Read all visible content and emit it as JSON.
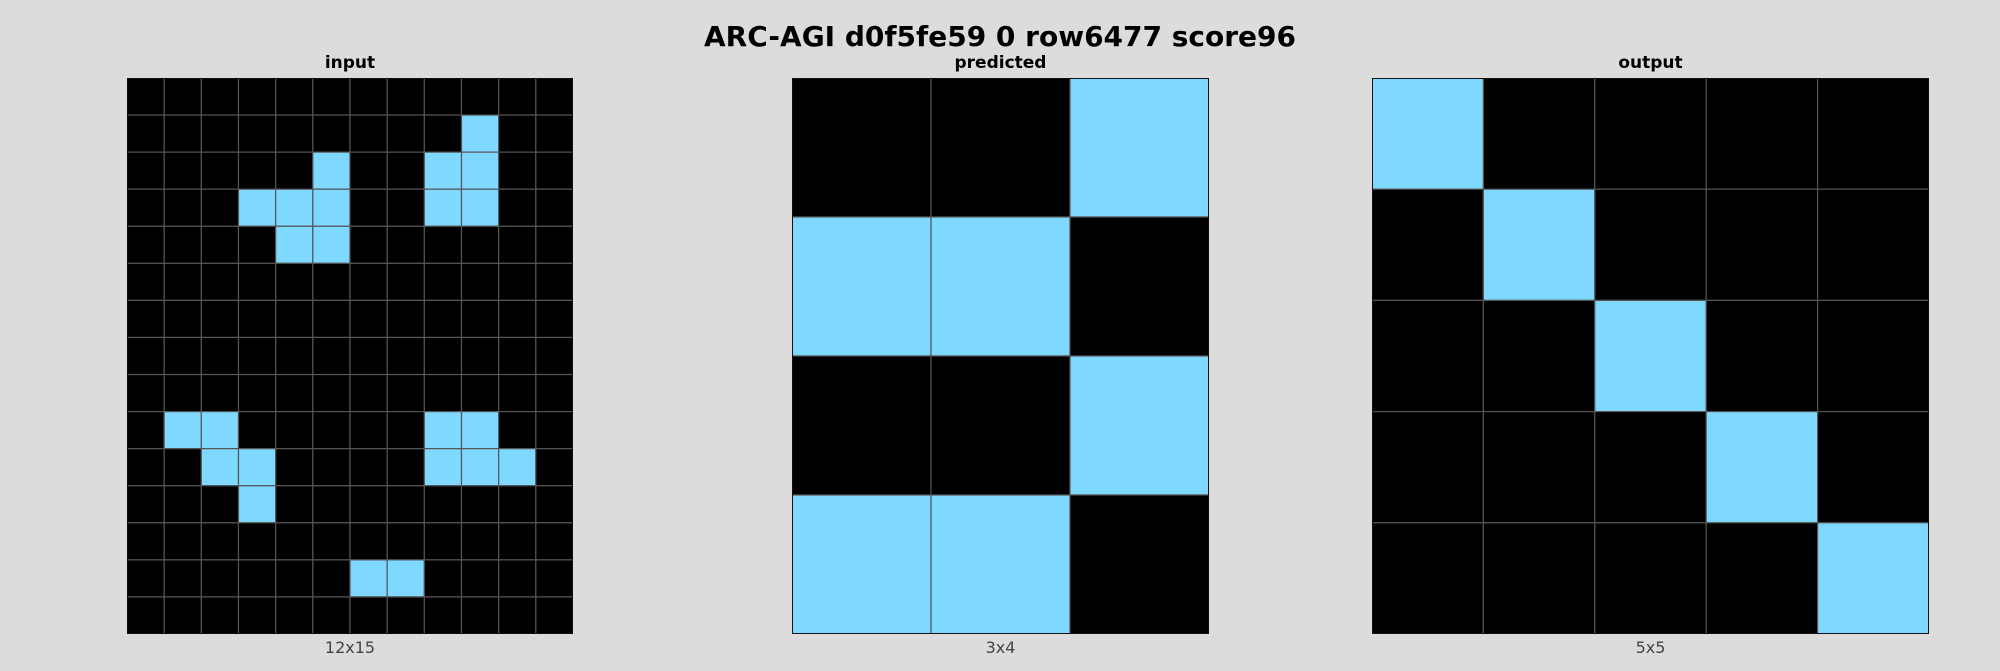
{
  "title": "ARC-AGI d0f5fe59 0 row6477 score96",
  "colors": {
    "background": "#000000",
    "fill": "#7fd8ff",
    "gridline": "#555555",
    "page": "#dcdcdc"
  },
  "panels": [
    {
      "id": "input",
      "label": "input",
      "size_label": "12x15",
      "cols": 12,
      "rows": 15,
      "cells": [
        "000000000000",
        "000000000100",
        "000001001100",
        "000111001100",
        "000011000000",
        "000000000000",
        "000000000000",
        "000000000000",
        "000000000000",
        "011000001100",
        "001100001110",
        "000100000000",
        "000000000000",
        "000000110000",
        "000000000000"
      ]
    },
    {
      "id": "predicted",
      "label": "predicted",
      "size_label": "3x4",
      "cols": 3,
      "rows": 4,
      "cells": [
        "001",
        "110",
        "001",
        "110"
      ]
    },
    {
      "id": "output",
      "label": "output",
      "size_label": "5x5",
      "cols": 5,
      "rows": 5,
      "cells": [
        "10000",
        "01000",
        "00100",
        "00010",
        "00001"
      ]
    }
  ]
}
